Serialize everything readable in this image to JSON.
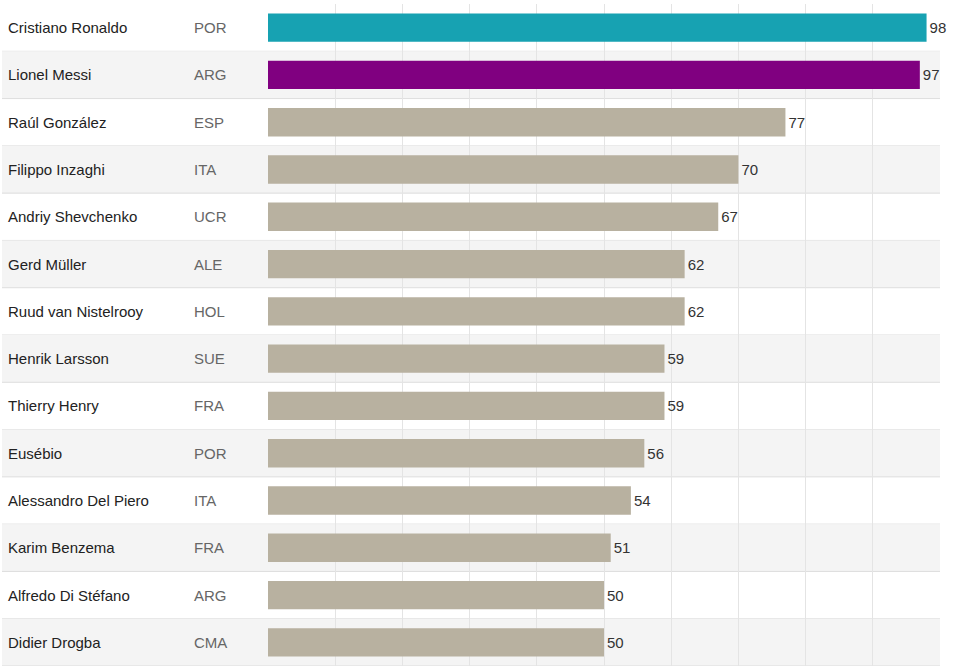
{
  "chart_data": {
    "type": "bar",
    "orientation": "horizontal",
    "categories": [
      "Cristiano Ronaldo",
      "Lionel Messi",
      "Raúl González",
      "Filippo Inzaghi",
      "Andriy Shevchenko",
      "Gerd Müller",
      "Ruud van Nistelrooy",
      "Henrik Larsson",
      "Thierry Henry",
      "Eusébio",
      "Alessandro Del Piero",
      "Karim Benzema",
      "Alfredo Di Stéfano",
      "Didier Drogba"
    ],
    "countries": [
      "POR",
      "ARG",
      "ESP",
      "ITA",
      "UCR",
      "ALE",
      "HOL",
      "SUE",
      "FRA",
      "POR",
      "ITA",
      "FRA",
      "ARG",
      "CMA"
    ],
    "values": [
      98,
      97,
      77,
      70,
      67,
      62,
      62,
      59,
      59,
      56,
      54,
      51,
      50,
      50
    ],
    "colors": [
      "#17a2b2",
      "#800080",
      "#b8b1a0",
      "#b8b1a0",
      "#b8b1a0",
      "#b8b1a0",
      "#b8b1a0",
      "#b8b1a0",
      "#b8b1a0",
      "#b8b1a0",
      "#b8b1a0",
      "#b8b1a0",
      "#b8b1a0",
      "#b8b1a0"
    ],
    "xlim": [
      0,
      100
    ],
    "xticks": [
      0,
      10,
      20,
      30,
      40,
      50,
      60,
      70,
      80,
      90,
      100
    ],
    "grid": true,
    "data_labels": true,
    "tick_labels": "y"
  }
}
